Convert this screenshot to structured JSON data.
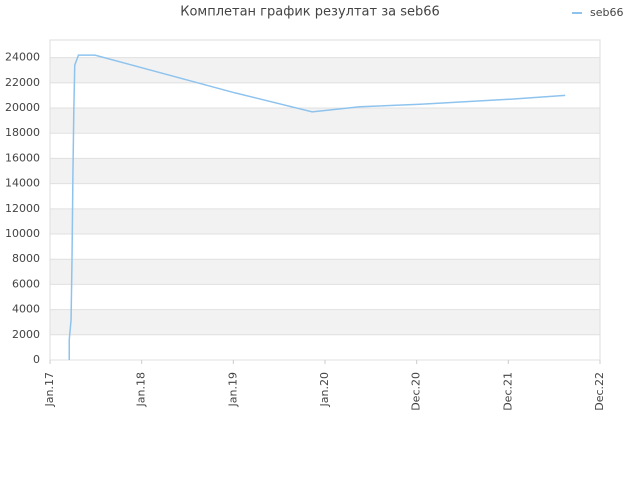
{
  "chart_data": {
    "type": "line",
    "title": "Комплетан график резултат за seb66",
    "x": [
      0.21,
      0.21,
      0.23,
      0.24,
      0.25,
      0.26,
      0.27,
      0.31,
      0.49,
      2.02,
      2.86,
      3.38,
      4.04,
      5.02,
      5.62
    ],
    "series": [
      {
        "name": "seb66",
        "color": "#8ec3ee",
        "values": [
          0,
          1600,
          3200,
          8000,
          14700,
          19900,
          23400,
          24200,
          24200,
          21200,
          19700,
          20100,
          20300,
          20700,
          21000
        ]
      }
    ],
    "xlim": [
      0,
      6
    ],
    "xticks": [
      {
        "value": 0,
        "label": "Jan.17"
      },
      {
        "value": 1,
        "label": "Jan.18"
      },
      {
        "value": 2,
        "label": "Jan.19"
      },
      {
        "value": 3,
        "label": "Jan.20"
      },
      {
        "value": 4,
        "label": "Dec.20"
      },
      {
        "value": 5,
        "label": "Dec.21"
      },
      {
        "value": 6,
        "label": "Dec.22"
      }
    ],
    "ylim": [
      0,
      25400
    ],
    "yticks": [
      0,
      2000,
      4000,
      6000,
      8000,
      10000,
      12000,
      14000,
      16000,
      18000,
      20000,
      22000,
      24000
    ],
    "grid": true,
    "legend": "top-right"
  }
}
